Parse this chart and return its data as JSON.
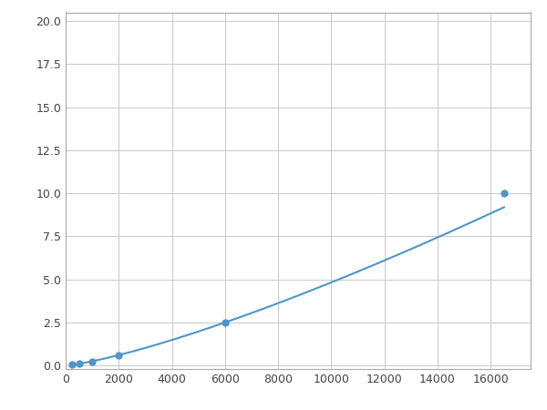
{
  "x": [
    250,
    500,
    1000,
    2000,
    6000,
    16500
  ],
  "y": [
    0.05,
    0.1,
    0.2,
    0.6,
    2.5,
    10.0
  ],
  "line_color": "#4f96c8",
  "marker_color": "#4f96c8",
  "marker_size": 5,
  "line_width": 1.5,
  "xlim": [
    0,
    17500
  ],
  "ylim": [
    -0.2,
    20.5
  ],
  "xticks": [
    0,
    2000,
    4000,
    6000,
    8000,
    10000,
    12000,
    14000,
    16000
  ],
  "yticks": [
    0.0,
    2.5,
    5.0,
    7.5,
    10.0,
    12.5,
    15.0,
    17.5,
    20.0
  ],
  "grid_color": "#cccccc",
  "background_color": "#ffffff",
  "spine_color": "#aaaaaa",
  "figure_width": 6.0,
  "figure_height": 4.5,
  "dpi": 100
}
